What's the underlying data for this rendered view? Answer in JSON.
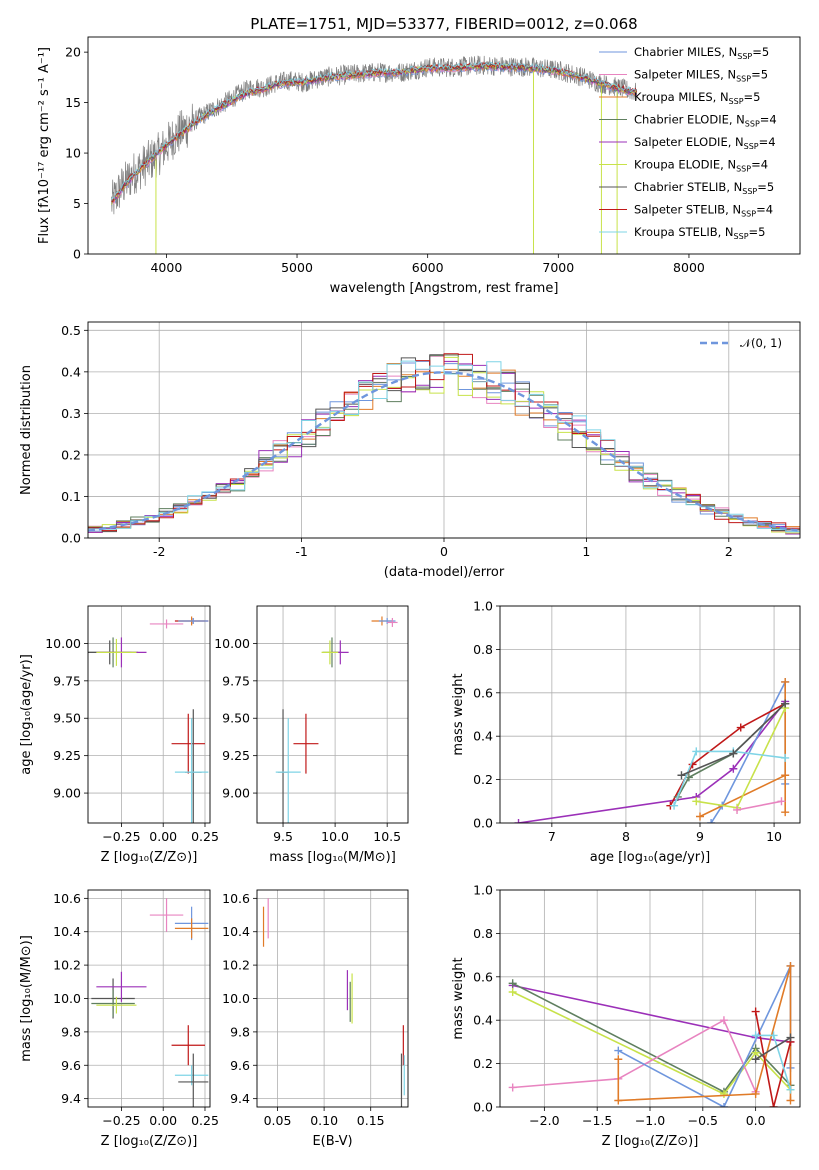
{
  "figure": {
    "title": "PLATE=1751, MJD=53377, FIBERID=0012, z=0.068"
  },
  "chart_data": [
    {
      "id": "spectrum",
      "type": "line",
      "xlabel": "wavelength [Angstrom, rest frame]",
      "ylabel": "Flux [fλ10⁻¹⁷ erg cm⁻² s⁻¹ A⁻¹]",
      "xlim": [
        3400,
        8850
      ],
      "ylim": [
        0,
        21.5
      ],
      "xticks": [
        4000,
        5000,
        6000,
        7000,
        8000
      ],
      "yticks": [
        0,
        5,
        10,
        15,
        20
      ],
      "grid": false,
      "legend_position": "upper-right",
      "data_color": "#808080",
      "data_x": [
        3580,
        3650,
        3750,
        3850,
        3950,
        4050,
        4150,
        4250,
        4350,
        4450,
        4550,
        4650,
        4750,
        4850,
        4950,
        5050,
        5200,
        5400,
        5600,
        5800,
        6000,
        6200,
        6400,
        6600,
        6800,
        7000,
        7200,
        7300,
        7450,
        7600
      ],
      "data_y": [
        5.0,
        6.5,
        8.0,
        9.0,
        10.0,
        11.5,
        12.5,
        13.5,
        14.3,
        15.0,
        15.8,
        16.5,
        16.5,
        17.0,
        17.2,
        17.0,
        17.5,
        17.8,
        18.0,
        18.0,
        18.5,
        18.5,
        18.7,
        18.6,
        18.5,
        18.2,
        17.5,
        17.0,
        16.5,
        16.0
      ],
      "series": [
        {
          "name": "Chabrier MILES, N_SSP=5",
          "color": "#6f96dd"
        },
        {
          "name": "Salpeter MILES, N_SSP=5",
          "color": "#e884c0"
        },
        {
          "name": "Kroupa MILES, N_SSP=5",
          "color": "#e07b28"
        },
        {
          "name": "Chabrier ELODIE, N_SSP=4",
          "color": "#5f7f5f"
        },
        {
          "name": "Salpeter ELODIE, N_SSP=4",
          "color": "#9b30b8"
        },
        {
          "name": "Kroupa ELODIE, N_SSP=4",
          "color": "#c8e24a"
        },
        {
          "name": "Chabrier STELIB, N_SSP=5",
          "color": "#555555"
        },
        {
          "name": "Salpeter STELIB, N_SSP=4",
          "color": "#c01818"
        },
        {
          "name": "Kroupa STELIB, N_SSP=5",
          "color": "#7fd4e6"
        }
      ],
      "model_x": [
        3580,
        3650,
        3750,
        3850,
        3950,
        4050,
        4150,
        4250,
        4350,
        4450,
        4550,
        4650,
        4750,
        4850,
        4950,
        5050,
        5200,
        5400,
        5600,
        5800,
        6000,
        6200,
        6400,
        6600,
        6800,
        7000,
        7200,
        7300,
        7450,
        7600
      ],
      "model_y": [
        5.0,
        6.3,
        7.8,
        9.0,
        10.2,
        11.3,
        12.3,
        13.3,
        14.1,
        14.8,
        15.5,
        16.1,
        16.4,
        16.8,
        17.0,
        17.0,
        17.4,
        17.7,
        17.9,
        18.0,
        18.4,
        18.4,
        18.6,
        18.5,
        18.4,
        18.1,
        17.4,
        17.0,
        16.4,
        16.0
      ],
      "spikes": [
        {
          "x": 3920,
          "y": 0
        },
        {
          "x": 6810,
          "y": 0
        },
        {
          "x": 7330,
          "y": 0
        },
        {
          "x": 7450,
          "y": 0
        }
      ]
    },
    {
      "id": "residuals",
      "type": "histogram",
      "xlabel": "(data-model)/error",
      "ylabel": "Normed distribution",
      "xlim": [
        -2.5,
        2.5
      ],
      "ylim": [
        0,
        0.52
      ],
      "xticks": [
        -2,
        -1,
        0,
        1,
        2
      ],
      "yticks": [
        0.0,
        0.1,
        0.2,
        0.3,
        0.4,
        0.5
      ],
      "grid": true,
      "legend": [
        {
          "name": "𝒩(0, 1)",
          "color": "#6f96dd",
          "style": "dashed"
        }
      ],
      "bin_start": -2.5,
      "bin_width": 0.1
    },
    {
      "id": "age_vs_Z",
      "type": "errorbar",
      "xlabel": "Z [log₁₀(Z/Z⊙)]",
      "ylabel": "age  [log₁₀(age/yr)]",
      "xlim": [
        -0.45,
        0.28
      ],
      "ylim": [
        8.8,
        10.25
      ],
      "xticks": [
        -0.25,
        0.0,
        0.25
      ],
      "xticklabels": [
        "−0.25",
        "0.00",
        "0.25"
      ],
      "yticks": [
        9.0,
        9.25,
        9.5,
        9.75,
        10.0
      ],
      "yticklabels": [
        "9.00",
        "9.25",
        "9.50",
        "9.75",
        "10.00"
      ],
      "grid": true,
      "points": [
        {
          "x": 0.17,
          "y": 10.15,
          "xerr": 0.1,
          "yerr": 0.02,
          "color": "#c01818"
        },
        {
          "x": 0.17,
          "y": 10.15,
          "xerr": 0.08,
          "yerr": 0.03,
          "color": "#e07b28"
        },
        {
          "x": 0.18,
          "y": 10.15,
          "xerr": 0.09,
          "yerr": 0.02,
          "color": "#6f96dd"
        },
        {
          "x": 0.02,
          "y": 10.13,
          "xerr": 0.1,
          "yerr": 0.03,
          "color": "#e884c0"
        },
        {
          "x": -0.3,
          "y": 9.94,
          "xerr": 0.15,
          "yerr": 0.1,
          "color": "#5f7f5f"
        },
        {
          "x": -0.32,
          "y": 9.94,
          "xerr": 0.13,
          "yerr": 0.08,
          "color": "#555555"
        },
        {
          "x": -0.25,
          "y": 9.94,
          "xerr": 0.15,
          "yerr": 0.1,
          "color": "#9b30b8"
        },
        {
          "x": -0.28,
          "y": 9.94,
          "xerr": 0.12,
          "yerr": 0.09,
          "color": "#c8e24a"
        },
        {
          "x": 0.15,
          "y": 9.33,
          "xerr": 0.1,
          "yerr": 0.2,
          "color": "#c01818"
        },
        {
          "x": 0.18,
          "y": 9.14,
          "xerr": 0.05,
          "yerr": 0.42,
          "color": "#555555"
        },
        {
          "x": 0.17,
          "y": 9.14,
          "xerr": 0.1,
          "yerr": 0.36,
          "color": "#7fd4e6"
        }
      ]
    },
    {
      "id": "age_vs_mass",
      "type": "errorbar",
      "xlabel": "mass [log₁₀(M/M⊙)]",
      "ylabel": "",
      "xlim": [
        9.25,
        10.7
      ],
      "ylim": [
        8.8,
        10.25
      ],
      "xticks": [
        9.5,
        10.0,
        10.5
      ],
      "xticklabels": [
        "9.5",
        "10.0",
        "10.5"
      ],
      "yticks": [
        9.0,
        9.25,
        9.5,
        9.75,
        10.0
      ],
      "yticklabels": [
        "9.00",
        "9.25",
        "9.50",
        "9.75",
        "10.00"
      ],
      "grid": true,
      "points": [
        {
          "x": 10.45,
          "y": 10.15,
          "xerr": 0.1,
          "yerr": 0.03,
          "color": "#e07b28"
        },
        {
          "x": 10.5,
          "y": 10.15,
          "xerr": 0.08,
          "yerr": 0.02,
          "color": "#6f96dd"
        },
        {
          "x": 10.55,
          "y": 10.14,
          "xerr": 0.05,
          "yerr": 0.03,
          "color": "#e884c0"
        },
        {
          "x": 9.97,
          "y": 9.94,
          "xerr": 0.09,
          "yerr": 0.1,
          "color": "#5f7f5f"
        },
        {
          "x": 10.05,
          "y": 9.94,
          "xerr": 0.08,
          "yerr": 0.08,
          "color": "#9b30b8"
        },
        {
          "x": 9.95,
          "y": 9.94,
          "xerr": 0.08,
          "yerr": 0.08,
          "color": "#c8e24a"
        },
        {
          "x": 9.72,
          "y": 9.33,
          "xerr": 0.12,
          "yerr": 0.2,
          "color": "#c01818"
        },
        {
          "x": 9.5,
          "y": 9.14,
          "xerr": 0.05,
          "yerr": 0.42,
          "color": "#555555"
        },
        {
          "x": 9.55,
          "y": 9.14,
          "xerr": 0.12,
          "yerr": 0.36,
          "color": "#7fd4e6"
        }
      ]
    },
    {
      "id": "weight_vs_age",
      "type": "line",
      "xlabel": "age  [log₁₀(age/yr)]",
      "ylabel": "mass weight",
      "xlim": [
        6.3,
        10.35
      ],
      "ylim": [
        0,
        1.0
      ],
      "xticks": [
        7,
        8,
        9,
        10
      ],
      "yticks": [
        0.0,
        0.2,
        0.4,
        0.6,
        0.8,
        1.0
      ],
      "grid": true,
      "series": [
        {
          "color": "#9b30b8",
          "x": [
            6.55,
            8.95,
            9.45,
            10.15
          ],
          "y": [
            0.0,
            0.12,
            0.25,
            0.56
          ]
        },
        {
          "color": "#6f96dd",
          "x": [
            9.15,
            9.3,
            10.15,
            10.15
          ],
          "y": [
            0.0,
            0.08,
            0.65,
            0.18
          ]
        },
        {
          "color": "#e07b28",
          "x": [
            9.0,
            10.15,
            10.15,
            10.15
          ],
          "y": [
            0.03,
            0.22,
            0.65,
            0.05
          ]
        },
        {
          "color": "#c01818",
          "x": [
            8.6,
            8.9,
            9.55,
            10.15
          ],
          "y": [
            0.08,
            0.27,
            0.44,
            0.55
          ]
        },
        {
          "color": "#5f7f5f",
          "x": [
            8.7,
            8.85,
            9.45,
            10.15
          ],
          "y": [
            0.12,
            0.21,
            0.32,
            0.55
          ]
        },
        {
          "color": "#c8e24a",
          "x": [
            8.95,
            9.5,
            10.15
          ],
          "y": [
            0.1,
            0.07,
            0.53
          ]
        },
        {
          "color": "#e884c0",
          "x": [
            9.5,
            10.1
          ],
          "y": [
            0.06,
            0.1
          ]
        },
        {
          "color": "#7fd4e6",
          "x": [
            8.65,
            8.95,
            9.45,
            10.15
          ],
          "y": [
            0.08,
            0.33,
            0.33,
            0.3
          ]
        },
        {
          "color": "#555555",
          "x": [
            8.75,
            9.45,
            10.15
          ],
          "y": [
            0.22,
            0.32,
            0.55
          ]
        }
      ]
    },
    {
      "id": "mass_vs_Z",
      "type": "errorbar",
      "xlabel": "Z [log₁₀(Z/Z⊙)]",
      "ylabel": "mass [log₁₀(M/M⊙)]",
      "xlim": [
        -0.45,
        0.28
      ],
      "ylim": [
        9.35,
        10.65
      ],
      "xticks": [
        -0.25,
        0.0,
        0.25
      ],
      "xticklabels": [
        "−0.25",
        "0.00",
        "0.25"
      ],
      "yticks": [
        9.4,
        9.6,
        9.8,
        10.0,
        10.2,
        10.4,
        10.6
      ],
      "yticklabels": [
        "9.4",
        "9.6",
        "9.8",
        "10.0",
        "10.2",
        "10.4",
        "10.6"
      ],
      "grid": true,
      "points": [
        {
          "x": 0.02,
          "y": 10.5,
          "xerr": 0.1,
          "yerr": 0.1,
          "color": "#e884c0"
        },
        {
          "x": 0.17,
          "y": 10.45,
          "xerr": 0.1,
          "yerr": 0.1,
          "color": "#6f96dd"
        },
        {
          "x": 0.17,
          "y": 10.42,
          "xerr": 0.1,
          "yerr": 0.06,
          "color": "#e07b28"
        },
        {
          "x": -0.3,
          "y": 10.0,
          "xerr": 0.13,
          "yerr": 0.12,
          "color": "#555555"
        },
        {
          "x": -0.25,
          "y": 10.07,
          "xerr": 0.15,
          "yerr": 0.09,
          "color": "#9b30b8"
        },
        {
          "x": -0.3,
          "y": 9.97,
          "xerr": 0.13,
          "yerr": 0.08,
          "color": "#5f7f5f"
        },
        {
          "x": -0.28,
          "y": 9.96,
          "xerr": 0.12,
          "yerr": 0.05,
          "color": "#c8e24a"
        },
        {
          "x": 0.15,
          "y": 9.72,
          "xerr": 0.1,
          "yerr": 0.12,
          "color": "#c01818"
        },
        {
          "x": 0.17,
          "y": 9.54,
          "xerr": 0.1,
          "yerr": 0.06,
          "color": "#7fd4e6"
        },
        {
          "x": 0.18,
          "y": 9.5,
          "xerr": 0.09,
          "yerr": 0.17,
          "color": "#555555"
        }
      ]
    },
    {
      "id": "mass_vs_ebv",
      "type": "errorbar",
      "xlabel": "E(B-V)",
      "ylabel": "",
      "xlim": [
        0.028,
        0.19
      ],
      "ylim": [
        9.35,
        10.65
      ],
      "xticks": [
        0.05,
        0.1,
        0.15
      ],
      "xticklabels": [
        "0.05",
        "0.10",
        "0.15"
      ],
      "yticks": [
        9.4,
        9.6,
        9.8,
        10.0,
        10.2,
        10.4,
        10.6
      ],
      "yticklabels": [
        "9.4",
        "9.6",
        "9.8",
        "10.0",
        "10.2",
        "10.4",
        "10.6"
      ],
      "grid": true,
      "points": [
        {
          "x": 0.035,
          "y": 10.43,
          "xerr": 0,
          "yerr": 0.12,
          "color": "#e07b28"
        },
        {
          "x": 0.04,
          "y": 10.48,
          "xerr": 0,
          "yerr": 0.12,
          "color": "#e884c0"
        },
        {
          "x": 0.125,
          "y": 10.05,
          "xerr": 0,
          "yerr": 0.12,
          "color": "#9b30b8"
        },
        {
          "x": 0.13,
          "y": 10.0,
          "xerr": 0,
          "yerr": 0.15,
          "color": "#c8e24a"
        },
        {
          "x": 0.128,
          "y": 9.98,
          "xerr": 0,
          "yerr": 0.12,
          "color": "#5f7f5f"
        },
        {
          "x": 0.185,
          "y": 9.72,
          "xerr": 0,
          "yerr": 0.12,
          "color": "#c01818"
        },
        {
          "x": 0.183,
          "y": 9.5,
          "xerr": 0,
          "yerr": 0.17,
          "color": "#555555"
        },
        {
          "x": 0.186,
          "y": 9.54,
          "xerr": 0,
          "yerr": 0.12,
          "color": "#7fd4e6"
        }
      ]
    },
    {
      "id": "weight_vs_Z",
      "type": "line",
      "xlabel": "Z [log₁₀(Z/Z⊙)]",
      "ylabel": "mass weight",
      "xlim": [
        -2.42,
        0.42
      ],
      "ylim": [
        0,
        1.0
      ],
      "xticks": [
        -2.0,
        -1.5,
        -1.0,
        -0.5,
        0.0
      ],
      "xticklabels": [
        "−2.0",
        "−1.5",
        "−1.0",
        "−0.5",
        "0.0"
      ],
      "yticks": [
        0.0,
        0.2,
        0.4,
        0.6,
        0.8,
        1.0
      ],
      "grid": true,
      "series": [
        {
          "color": "#9b30b8",
          "x": [
            -2.3,
            0.0,
            0.33
          ],
          "y": [
            0.56,
            0.32,
            0.3
          ]
        },
        {
          "color": "#5f7f5f",
          "x": [
            -2.3,
            -0.3,
            0.0,
            0.33
          ],
          "y": [
            0.57,
            0.07,
            0.27,
            0.1
          ]
        },
        {
          "color": "#c8e24a",
          "x": [
            -2.3,
            -0.3,
            0.0,
            0.33
          ],
          "y": [
            0.53,
            0.06,
            0.25,
            0.08
          ]
        },
        {
          "color": "#e884c0",
          "x": [
            -2.3,
            -1.3,
            -0.3,
            0.0
          ],
          "y": [
            0.09,
            0.13,
            0.4,
            0.07
          ]
        },
        {
          "color": "#6f96dd",
          "x": [
            -1.3,
            -0.3,
            0.33,
            0.33
          ],
          "y": [
            0.26,
            0.0,
            0.65,
            0.18
          ]
        },
        {
          "color": "#e07b28",
          "x": [
            -1.3,
            -1.3,
            0.0,
            0.33,
            0.33
          ],
          "y": [
            0.22,
            0.03,
            0.06,
            0.65,
            0.03
          ]
        },
        {
          "color": "#c01818",
          "x": [
            0.0,
            0.17,
            0.33
          ],
          "y": [
            0.44,
            0.0,
            0.3
          ]
        },
        {
          "color": "#7fd4e6",
          "x": [
            0.0,
            0.17,
            0.33
          ],
          "y": [
            0.33,
            0.33,
            0.08
          ]
        },
        {
          "color": "#555555",
          "x": [
            0.0,
            0.33
          ],
          "y": [
            0.22,
            0.32
          ]
        }
      ]
    }
  ]
}
